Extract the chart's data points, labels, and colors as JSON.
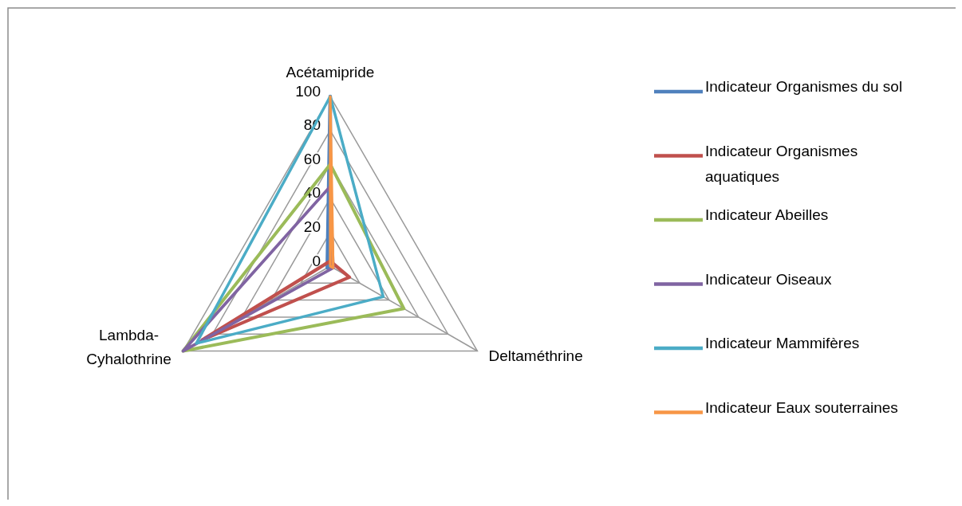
{
  "chart_data": {
    "type": "radar",
    "categories": [
      "Acétamipride",
      "Deltaméthrine",
      "Lambda-Cyhalothrine"
    ],
    "ylim": [
      0,
      100
    ],
    "yticks": [
      0,
      20,
      40,
      60,
      80,
      100
    ],
    "grid": true,
    "legend": "right",
    "marker": "none",
    "series": [
      {
        "name": "Indicateur Organismes du sol",
        "color": "#4f81bd",
        "values": [
          100,
          0,
          2
        ]
      },
      {
        "name": "Indicateur Organismes aquatiques",
        "color": "#c0504d",
        "values": [
          3,
          13,
          87
        ]
      },
      {
        "name": "Indicateur Abeilles",
        "color": "#9bbb59",
        "values": [
          60,
          50,
          100
        ]
      },
      {
        "name": "Indicateur Oiseaux",
        "color": "#8064a2",
        "values": [
          47,
          2,
          100
        ]
      },
      {
        "name": "Indicateur Mammifères",
        "color": "#4bacc6",
        "values": [
          100,
          36,
          91
        ]
      },
      {
        "name": "Indicateur Eaux souterraines",
        "color": "#f79646",
        "values": [
          100,
          2,
          0
        ]
      }
    ]
  }
}
